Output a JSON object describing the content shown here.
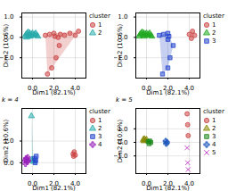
{
  "chart_data": [
    {
      "type": "scatter",
      "xlabel": "Dim1 (82.1%)",
      "ylabel": "Dim2 (10.6%)",
      "xlim": [
        -1,
        5
      ],
      "ylim": [
        -2,
        1.2
      ],
      "xticks": [
        0,
        2,
        4
      ],
      "yticks": [
        -1,
        0,
        1
      ],
      "grid": true,
      "legend": "right",
      "legend_title": "cluster",
      "series": [
        {
          "name": "1",
          "color": "#cc4444",
          "marker": "circle",
          "x": [
            1.2,
            1.6,
            2.0,
            2.1,
            2.4,
            2.6,
            3.0,
            3.5,
            4.3,
            4.0,
            1.8,
            1.4,
            2.2,
            2.5
          ],
          "y": [
            0.1,
            0.15,
            0.2,
            0.05,
            0.0,
            0.15,
            0.1,
            0.2,
            0.3,
            0.1,
            -1.5,
            -1.8,
            -1.0,
            -0.4
          ]
        },
        {
          "name": "2",
          "color": "#2aabab",
          "marker": "triangle",
          "x": [
            -0.7,
            -0.6,
            -0.5,
            -0.4,
            -0.3,
            -0.25,
            -0.2,
            -0.1,
            0.0,
            0.1,
            0.2,
            0.3,
            0.4,
            0.5,
            -0.55,
            -0.35
          ],
          "y": [
            0.05,
            0.15,
            0.2,
            0.25,
            0.1,
            0.2,
            0.05,
            0.15,
            0.2,
            0.1,
            0.15,
            0.2,
            0.1,
            0.05,
            0.0,
            0.05
          ]
        }
      ]
    },
    {
      "type": "scatter",
      "xlabel": "Dim1 (82.1%)",
      "ylabel": "Dim2 (10.6%)",
      "xlim": [
        -1,
        5
      ],
      "ylim": [
        -2,
        1.2
      ],
      "xticks": [
        0,
        2,
        4
      ],
      "yticks": [
        -1,
        0,
        1
      ],
      "grid": true,
      "legend": "right",
      "legend_title": "cluster",
      "series": [
        {
          "name": "1",
          "color": "#cc4444",
          "marker": "circle",
          "x": [
            4.3,
            4.5,
            4.0,
            4.2
          ],
          "y": [
            0.3,
            0.1,
            0.15,
            -0.05
          ]
        },
        {
          "name": "2",
          "color": "#22aa22",
          "marker": "triangle",
          "x": [
            -0.7,
            -0.6,
            -0.5,
            -0.4,
            -0.3,
            -0.25,
            -0.2,
            -0.1,
            0.0,
            0.1,
            0.2,
            0.3,
            0.4,
            0.5
          ],
          "y": [
            0.05,
            0.15,
            0.2,
            0.25,
            0.1,
            0.2,
            0.05,
            0.15,
            0.2,
            0.1,
            0.15,
            0.2,
            0.1,
            0.05
          ]
        },
        {
          "name": "3",
          "color": "#2244cc",
          "marker": "square",
          "x": [
            1.2,
            1.6,
            2.0,
            2.1,
            2.0,
            1.5,
            2.2,
            2.5,
            2.0
          ],
          "y": [
            0.1,
            0.15,
            0.2,
            0.05,
            -1.5,
            -1.8,
            -1.0,
            -0.4,
            -0.1
          ]
        }
      ]
    },
    {
      "type": "scatter",
      "title": "k = 4",
      "xlabel": "Dim1 (82.1%)",
      "ylabel": "Dim2 (10.6%)",
      "xlim": [
        -1,
        5
      ],
      "ylim": [
        -0.5,
        2.5
      ],
      "xticks": [
        0,
        2,
        4
      ],
      "yticks": [
        0,
        1
      ],
      "grid": true,
      "legend": "right",
      "legend_title": "cluster",
      "series": [
        {
          "name": "1",
          "color": "#cc4444",
          "marker": "circle",
          "x": [
            3.8,
            3.9,
            4.0,
            3.85
          ],
          "y": [
            0.4,
            0.5,
            0.35,
            0.3
          ]
        },
        {
          "name": "2",
          "color": "#2aabab",
          "marker": "triangle",
          "x": [
            -0.1,
            0.0,
            0.1,
            -0.05
          ],
          "y": [
            2.15,
            0.1,
            0.05,
            0.15
          ]
        },
        {
          "name": "3",
          "color": "#2244cc",
          "marker": "square",
          "x": [
            0.2,
            0.3,
            0.35,
            0.25
          ],
          "y": [
            0.2,
            0.1,
            0.3,
            0.0
          ]
        },
        {
          "name": "4",
          "color": "#9922bb",
          "marker": "plus",
          "x": [
            -0.7,
            -0.6,
            -0.5,
            -0.65,
            -0.55,
            -0.45,
            -0.4
          ],
          "y": [
            0.1,
            0.2,
            0.05,
            -0.05,
            0.15,
            0.25,
            0.1
          ]
        }
      ]
    },
    {
      "type": "scatter",
      "title": "k = 5",
      "xlabel": "Dim1 (82.1%)",
      "ylabel": "Dim2 (10.6%)",
      "xlim": [
        -1,
        5
      ],
      "ylim": [
        -2.3,
        2.5
      ],
      "xticks": [
        0,
        2,
        4
      ],
      "yticks": [
        -1,
        0,
        1
      ],
      "grid": true,
      "legend": "right",
      "legend_title": "cluster",
      "series": [
        {
          "name": "1",
          "color": "#cc4444",
          "marker": "circle",
          "x": [
            3.8,
            3.9,
            3.85
          ],
          "y": [
            2.1,
            0.5,
            1.3
          ]
        },
        {
          "name": "2",
          "color": "#888800",
          "marker": "triangle",
          "x": [
            -0.3,
            -0.2,
            -0.1,
            0.0,
            -0.25
          ],
          "y": [
            0.2,
            0.25,
            0.15,
            0.2,
            0.1
          ]
        },
        {
          "name": "3",
          "color": "#1a881a",
          "marker": "square",
          "x": [
            0.15,
            0.3,
            0.4,
            0.25
          ],
          "y": [
            0.05,
            0.1,
            0.0,
            -0.1
          ]
        },
        {
          "name": "4",
          "color": "#1a55bb",
          "marker": "plus",
          "x": [
            1.8,
            1.9,
            1.85
          ],
          "y": [
            0.1,
            0.0,
            -0.1
          ]
        },
        {
          "name": "5",
          "color": "#bb22bb",
          "marker": "x",
          "x": [
            3.8,
            3.85,
            3.9
          ],
          "y": [
            -0.4,
            -1.5,
            -2.0
          ]
        }
      ]
    }
  ]
}
